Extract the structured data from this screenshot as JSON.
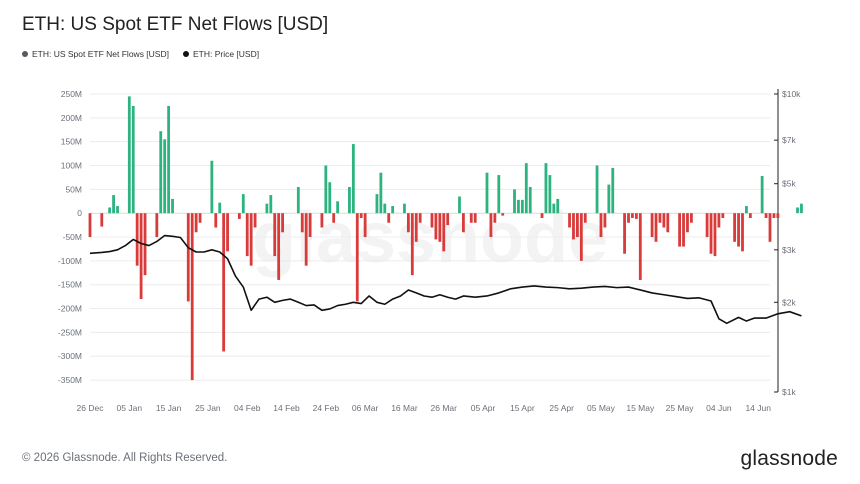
{
  "title": "ETH: US Spot ETF Net Flows [USD]",
  "legend": [
    {
      "label": "ETH: US Spot ETF Net Flows [USD]",
      "color": "#555a60"
    },
    {
      "label": "ETH: Price [USD]",
      "color": "#111111"
    }
  ],
  "watermark": "glassnode",
  "footer": {
    "copyright": "© 2026 Glassnode. All Rights Reserved.",
    "logo": "glassnode"
  },
  "colors": {
    "positive": "#2db37f",
    "negative": "#d93a3a",
    "price": "#111111",
    "grid": "#ececec"
  },
  "chart_data": {
    "type": "bar",
    "left_axis": {
      "min": -375,
      "max": 250,
      "unit": "M",
      "ticks": [
        "250M",
        "200M",
        "150M",
        "100M",
        "50M",
        "0",
        "-50M",
        "-100M",
        "-150M",
        "-200M",
        "-250M",
        "-300M",
        "-350M"
      ]
    },
    "right_axis": {
      "scale": "log",
      "min": 1000,
      "max": 10000,
      "ticks": [
        "$10k",
        "$7k",
        "$5k",
        "$3k",
        "$2k",
        "$1k"
      ]
    },
    "x_axis": {
      "start": "2025-12-26",
      "end": "2026-06-17",
      "ticks": [
        "26 Dec",
        "05 Jan",
        "15 Jan",
        "25 Jan",
        "04 Feb",
        "14 Feb",
        "24 Feb",
        "06 Mar",
        "16 Mar",
        "26 Mar",
        "05 Apr",
        "15 Apr",
        "25 Apr",
        "05 May",
        "15 May",
        "25 May",
        "04 Jun",
        "14 Jun"
      ]
    },
    "series": [
      {
        "name": "ETH: US Spot ETF Net Flows [USD]",
        "kind": "bars",
        "points": [
          [
            "2025-12-26",
            -50
          ],
          [
            "2025-12-29",
            -28
          ],
          [
            "2025-12-31",
            12
          ],
          [
            "2026-01-01",
            38
          ],
          [
            "2026-01-02",
            15
          ],
          [
            "2026-01-05",
            245
          ],
          [
            "2026-01-06",
            225
          ],
          [
            "2026-01-07",
            -110
          ],
          [
            "2026-01-08",
            -180
          ],
          [
            "2026-01-09",
            -130
          ],
          [
            "2026-01-12",
            -50
          ],
          [
            "2026-01-13",
            172
          ],
          [
            "2026-01-14",
            155
          ],
          [
            "2026-01-15",
            225
          ],
          [
            "2026-01-16",
            30
          ],
          [
            "2026-01-20",
            -185
          ],
          [
            "2026-01-21",
            -350
          ],
          [
            "2026-01-22",
            -40
          ],
          [
            "2026-01-23",
            -20
          ],
          [
            "2026-01-26",
            110
          ],
          [
            "2026-01-27",
            -30
          ],
          [
            "2026-01-28",
            22
          ],
          [
            "2026-01-29",
            -290
          ],
          [
            "2026-01-30",
            -80
          ],
          [
            "2026-02-02",
            -12
          ],
          [
            "2026-02-03",
            40
          ],
          [
            "2026-02-04",
            -90
          ],
          [
            "2026-02-05",
            -110
          ],
          [
            "2026-02-06",
            -30
          ],
          [
            "2026-02-09",
            20
          ],
          [
            "2026-02-10",
            38
          ],
          [
            "2026-02-11",
            -90
          ],
          [
            "2026-02-12",
            -140
          ],
          [
            "2026-02-13",
            -40
          ],
          [
            "2026-02-17",
            55
          ],
          [
            "2026-02-18",
            -40
          ],
          [
            "2026-02-19",
            -110
          ],
          [
            "2026-02-20",
            -50
          ],
          [
            "2026-02-23",
            -30
          ],
          [
            "2026-02-24",
            100
          ],
          [
            "2026-02-25",
            65
          ],
          [
            "2026-02-26",
            -20
          ],
          [
            "2026-02-27",
            25
          ],
          [
            "2026-03-02",
            55
          ],
          [
            "2026-03-03",
            145
          ],
          [
            "2026-03-04",
            -185
          ],
          [
            "2026-03-05",
            -10
          ],
          [
            "2026-03-06",
            -50
          ],
          [
            "2026-03-09",
            40
          ],
          [
            "2026-03-10",
            85
          ],
          [
            "2026-03-11",
            20
          ],
          [
            "2026-03-12",
            -20
          ],
          [
            "2026-03-13",
            15
          ],
          [
            "2026-03-16",
            20
          ],
          [
            "2026-03-17",
            -40
          ],
          [
            "2026-03-18",
            -130
          ],
          [
            "2026-03-19",
            -60
          ],
          [
            "2026-03-20",
            -20
          ],
          [
            "2026-03-23",
            -30
          ],
          [
            "2026-03-24",
            -55
          ],
          [
            "2026-03-25",
            -60
          ],
          [
            "2026-03-26",
            -80
          ],
          [
            "2026-03-27",
            -25
          ],
          [
            "2026-03-30",
            35
          ],
          [
            "2026-03-31",
            -40
          ],
          [
            "2026-04-02",
            -20
          ],
          [
            "2026-04-03",
            -20
          ],
          [
            "2026-04-06",
            85
          ],
          [
            "2026-04-07",
            -50
          ],
          [
            "2026-04-08",
            -20
          ],
          [
            "2026-04-09",
            80
          ],
          [
            "2026-04-10",
            -5
          ],
          [
            "2026-04-13",
            50
          ],
          [
            "2026-04-14",
            28
          ],
          [
            "2026-04-15",
            28
          ],
          [
            "2026-04-16",
            105
          ],
          [
            "2026-04-17",
            55
          ],
          [
            "2026-04-20",
            -10
          ],
          [
            "2026-04-21",
            105
          ],
          [
            "2026-04-22",
            80
          ],
          [
            "2026-04-23",
            20
          ],
          [
            "2026-04-24",
            30
          ],
          [
            "2026-04-27",
            -30
          ],
          [
            "2026-04-28",
            -55
          ],
          [
            "2026-04-29",
            -50
          ],
          [
            "2026-04-30",
            -100
          ],
          [
            "2026-05-01",
            -20
          ],
          [
            "2026-05-04",
            100
          ],
          [
            "2026-05-05",
            -50
          ],
          [
            "2026-05-06",
            -30
          ],
          [
            "2026-05-07",
            60
          ],
          [
            "2026-05-08",
            95
          ],
          [
            "2026-05-11",
            -85
          ],
          [
            "2026-05-12",
            -20
          ],
          [
            "2026-05-13",
            -10
          ],
          [
            "2026-05-14",
            -12
          ],
          [
            "2026-05-15",
            -140
          ],
          [
            "2026-05-18",
            -50
          ],
          [
            "2026-05-19",
            -60
          ],
          [
            "2026-05-20",
            -20
          ],
          [
            "2026-05-21",
            -30
          ],
          [
            "2026-05-22",
            -40
          ],
          [
            "2026-05-25",
            -70
          ],
          [
            "2026-05-26",
            -70
          ],
          [
            "2026-05-27",
            -40
          ],
          [
            "2026-05-28",
            -20
          ],
          [
            "2026-06-01",
            -50
          ],
          [
            "2026-06-02",
            -85
          ],
          [
            "2026-06-03",
            -90
          ],
          [
            "2026-06-04",
            -30
          ],
          [
            "2026-06-05",
            -10
          ],
          [
            "2026-06-08",
            -60
          ],
          [
            "2026-06-09",
            -70
          ],
          [
            "2026-06-10",
            -80
          ],
          [
            "2026-06-11",
            15
          ],
          [
            "2026-06-12",
            -10
          ],
          [
            "2026-06-15",
            78
          ],
          [
            "2026-06-16",
            -10
          ],
          [
            "2026-06-17",
            -60
          ],
          [
            "2026-06-18",
            -10
          ],
          [
            "2026-06-19",
            -10
          ],
          [
            "2026-06-24",
            12
          ],
          [
            "2026-06-25",
            20
          ]
        ]
      },
      {
        "name": "ETH: Price [USD]",
        "kind": "line",
        "points": [
          [
            "2025-12-26",
            2920
          ],
          [
            "2025-12-29",
            2940
          ],
          [
            "2025-12-31",
            2960
          ],
          [
            "2026-01-02",
            3000
          ],
          [
            "2026-01-04",
            3100
          ],
          [
            "2026-01-06",
            3250
          ],
          [
            "2026-01-08",
            3150
          ],
          [
            "2026-01-10",
            3100
          ],
          [
            "2026-01-12",
            3200
          ],
          [
            "2026-01-14",
            3350
          ],
          [
            "2026-01-16",
            3330
          ],
          [
            "2026-01-18",
            3300
          ],
          [
            "2026-01-20",
            3050
          ],
          [
            "2026-01-22",
            2950
          ],
          [
            "2026-01-24",
            2950
          ],
          [
            "2026-01-26",
            3000
          ],
          [
            "2026-01-28",
            2950
          ],
          [
            "2026-01-30",
            2800
          ],
          [
            "2026-02-01",
            2450
          ],
          [
            "2026-02-03",
            2250
          ],
          [
            "2026-02-05",
            1880
          ],
          [
            "2026-02-07",
            2050
          ],
          [
            "2026-02-09",
            2080
          ],
          [
            "2026-02-11",
            2000
          ],
          [
            "2026-02-13",
            2030
          ],
          [
            "2026-02-15",
            2050
          ],
          [
            "2026-02-17",
            2000
          ],
          [
            "2026-02-19",
            1950
          ],
          [
            "2026-02-21",
            1960
          ],
          [
            "2026-02-23",
            1880
          ],
          [
            "2026-02-25",
            1900
          ],
          [
            "2026-02-27",
            1950
          ],
          [
            "2026-03-01",
            1970
          ],
          [
            "2026-03-03",
            2000
          ],
          [
            "2026-03-05",
            1980
          ],
          [
            "2026-03-07",
            2100
          ],
          [
            "2026-03-09",
            2000
          ],
          [
            "2026-03-11",
            1970
          ],
          [
            "2026-03-13",
            2050
          ],
          [
            "2026-03-15",
            2100
          ],
          [
            "2026-03-17",
            2200
          ],
          [
            "2026-03-19",
            2150
          ],
          [
            "2026-03-21",
            2100
          ],
          [
            "2026-03-23",
            2080
          ],
          [
            "2026-03-25",
            2120
          ],
          [
            "2026-03-27",
            2080
          ],
          [
            "2026-03-29",
            2050
          ],
          [
            "2026-03-31",
            2100
          ],
          [
            "2026-04-03",
            2080
          ],
          [
            "2026-04-06",
            2100
          ],
          [
            "2026-04-09",
            2150
          ],
          [
            "2026-04-12",
            2220
          ],
          [
            "2026-04-15",
            2250
          ],
          [
            "2026-04-18",
            2270
          ],
          [
            "2026-04-21",
            2250
          ],
          [
            "2026-04-24",
            2240
          ],
          [
            "2026-04-27",
            2220
          ],
          [
            "2026-04-30",
            2230
          ],
          [
            "2026-05-03",
            2250
          ],
          [
            "2026-05-06",
            2260
          ],
          [
            "2026-05-09",
            2240
          ],
          [
            "2026-05-12",
            2250
          ],
          [
            "2026-05-15",
            2200
          ],
          [
            "2026-05-18",
            2150
          ],
          [
            "2026-05-21",
            2120
          ],
          [
            "2026-05-24",
            2090
          ],
          [
            "2026-05-27",
            2060
          ],
          [
            "2026-05-30",
            2070
          ],
          [
            "2026-06-02",
            2020
          ],
          [
            "2026-06-04",
            1760
          ],
          [
            "2026-06-06",
            1700
          ],
          [
            "2026-06-09",
            1780
          ],
          [
            "2026-06-11",
            1730
          ],
          [
            "2026-06-13",
            1770
          ],
          [
            "2026-06-16",
            1770
          ],
          [
            "2026-06-19",
            1830
          ],
          [
            "2026-06-22",
            1860
          ],
          [
            "2026-06-25",
            1800
          ]
        ]
      }
    ]
  }
}
